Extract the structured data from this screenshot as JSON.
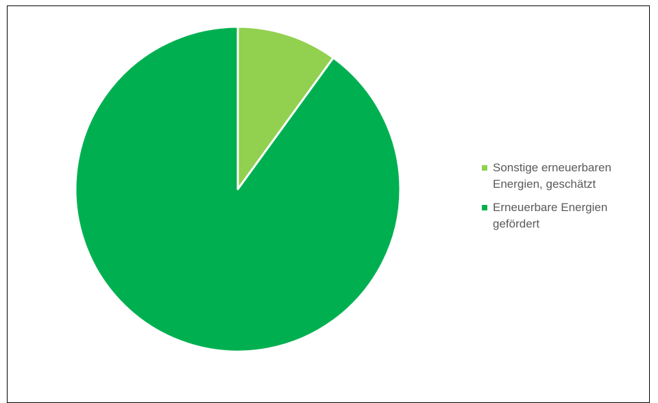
{
  "chart_data": {
    "type": "pie",
    "title": "",
    "start_angle_deg": 0,
    "direction": "clockwise",
    "slices": [
      {
        "label": "Sonstige erneuerbaren Energien, geschätzt",
        "value": 10,
        "color": "#92d050"
      },
      {
        "label": "Erneuerbare Energien gefördert",
        "value": 90,
        "color": "#00b050"
      }
    ],
    "legend_position": "right",
    "slice_border_color": "#ffffff"
  }
}
